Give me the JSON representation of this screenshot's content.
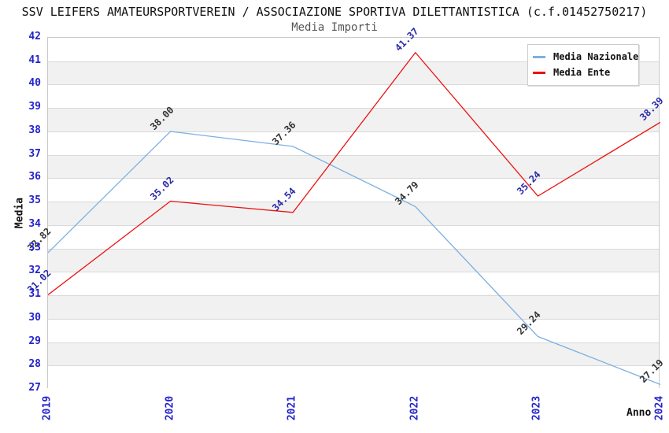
{
  "title": "SSV LEIFERS AMATEURSPORTVEREIN / ASSOCIAZIONE SPORTIVA DILETTANTISTICA (c.f.01452750217)",
  "subtitle": "Media Importi",
  "legend": {
    "items": [
      {
        "label": "Media Nazionale",
        "color": "#7CB0E2"
      },
      {
        "label": "Media Ente",
        "color": "#ED1111"
      }
    ]
  },
  "axes": {
    "y_label": "Media",
    "x_label": "Anno",
    "y_ticks": [
      42,
      41,
      40,
      39,
      38,
      37,
      36,
      35,
      34,
      33,
      32,
      31,
      30,
      29,
      28,
      27
    ],
    "tick_color": "#2323CC"
  },
  "chart_data": {
    "type": "line",
    "title": "Media Importi",
    "x": [
      "2019",
      "2020",
      "2021",
      "2022",
      "2023",
      "2024"
    ],
    "series": [
      {
        "name": "Media Nazionale",
        "color": "#7CB0E2",
        "label_color": "#333333",
        "values": [
          32.82,
          38.0,
          37.36,
          34.79,
          29.24,
          27.19
        ]
      },
      {
        "name": "Media Ente",
        "color": "#ED1111",
        "label_color": "#2A2AA8",
        "values": [
          31.02,
          35.02,
          34.54,
          41.37,
          35.24,
          38.39
        ]
      }
    ],
    "xlabel": "Anno",
    "ylabel": "Media",
    "ylim": [
      27,
      42
    ],
    "grid": true,
    "band_colors": [
      "#ffffff",
      "#f1f1f1"
    ],
    "grid_color": "#d9d9d9",
    "legend_position": "top-right"
  }
}
